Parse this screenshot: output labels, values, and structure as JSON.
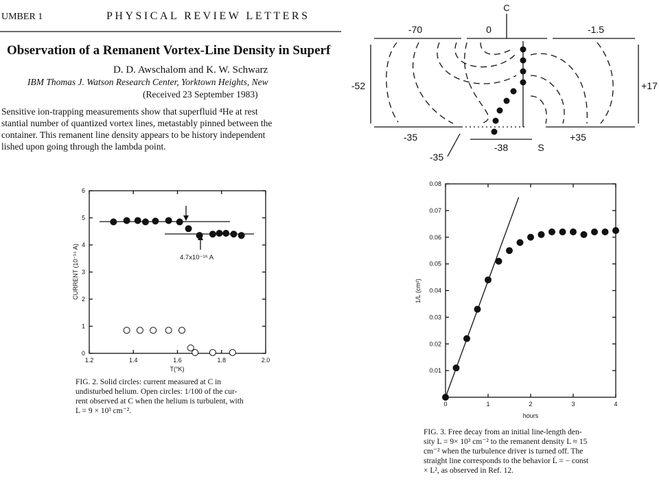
{
  "header": {
    "page": "UMBER 1",
    "journal": "PHYSICAL REVIEW LETTERS"
  },
  "article": {
    "title": "Observation of a Remanent Vortex-Line Density in Superf",
    "authors": "D. D. Awschalom and K. W. Schwarz",
    "affiliation": "IBM Thomas J. Watson Research Center, Yorktown Heights, New",
    "received": "(Received 23 September 1983)",
    "abstract_lines": [
      "Sensitive ion-trapping measurements show that superfluid ⁴He at rest",
      "stantial number of quantized vortex lines, metastably pinned between the",
      "container.  This remanent line density appears to be history independent",
      "lished upon going through the lambda point."
    ]
  },
  "diagram": {
    "labels": [
      "C",
      "-70",
      "0",
      "-1.5",
      "-52",
      "+17",
      "-35",
      "-38",
      "S",
      "+35",
      "-35"
    ]
  },
  "chart_data": [
    {
      "type": "scatter",
      "xlabel": "T(°K)",
      "ylabel": "CURRENT (10⁻¹⁵ A)",
      "annotation": "4.7x10⁻¹⁶ A",
      "xlim": [
        1.2,
        2.0
      ],
      "ylim": [
        0,
        6
      ],
      "xticks": [
        1.2,
        1.4,
        1.6,
        1.8,
        {
          "value": 2,
          "label": "2.0"
        }
      ],
      "yticks": [
        0,
        1,
        2,
        3,
        4,
        5,
        6
      ],
      "caption_lines": [
        "FIG. 2.  Solid circles: current measured at C in",
        "undisturbed helium.  Open circles: 1/100 of the cur-",
        "rent observed at C when the helium is turbulent, with",
        "L = 9 × 10³ cm⁻²."
      ],
      "series": [
        {
          "style": "marker",
          "filled": true,
          "color": "#111",
          "x": [
            1.31,
            1.37,
            1.42,
            1.455,
            1.5,
            1.56,
            1.61,
            1.65,
            1.7,
            1.76,
            1.79,
            1.82,
            1.855,
            1.89
          ],
          "values": [
            4.85,
            4.9,
            4.9,
            4.85,
            4.88,
            4.9,
            4.85,
            4.6,
            4.35,
            4.4,
            4.43,
            4.43,
            4.4,
            4.35
          ]
        },
        {
          "style": "marker",
          "filled": false,
          "color": "#111",
          "x": [
            1.37,
            1.43,
            1.49,
            1.56,
            1.62,
            1.66,
            1.68,
            1.76,
            1.85
          ],
          "values": [
            0.85,
            0.85,
            0.85,
            0.85,
            0.85,
            0.2,
            0.03,
            0.03,
            0.03
          ]
        }
      ]
    },
    {
      "type": "scatter",
      "xlabel": "hours",
      "ylabel": "1/L (cm²)",
      "xlim": [
        0,
        4
      ],
      "ylim": [
        0,
        0.08
      ],
      "xticks": [
        0,
        1,
        2,
        3,
        4
      ],
      "yticks": [
        0.01,
        0.02,
        0.03,
        0.04,
        0.05,
        0.06,
        0.07,
        0.08
      ],
      "caption_lines": [
        "FIG. 3.  Free decay from an initial line-length den-",
        "sity L = 9× 10³ cm⁻² to the remanent density L ≈ 15",
        "cm⁻² when the turbulence driver is turned off.  The",
        "straight line corresponds to the behavior L̇ = − const",
        "× L², as observed in Ref. 12."
      ],
      "series": [
        {
          "style": "marker",
          "filled": true,
          "color": "#111",
          "x": [
            0,
            0.25,
            0.5,
            0.75,
            1.0,
            1.25,
            1.5,
            1.75,
            2.0,
            2.25,
            2.5,
            2.75,
            3.0,
            3.25,
            3.5,
            3.75,
            4.0
          ],
          "values": [
            0,
            0.011,
            0.022,
            0.033,
            0.044,
            0.051,
            0.055,
            0.058,
            0.06,
            0.061,
            0.062,
            0.062,
            0.062,
            0.061,
            0.062,
            0.062,
            0.0625
          ]
        },
        {
          "style": "line",
          "color": "#111",
          "x": [
            0,
            1.72
          ],
          "values": [
            0,
            0.075
          ]
        }
      ]
    }
  ]
}
